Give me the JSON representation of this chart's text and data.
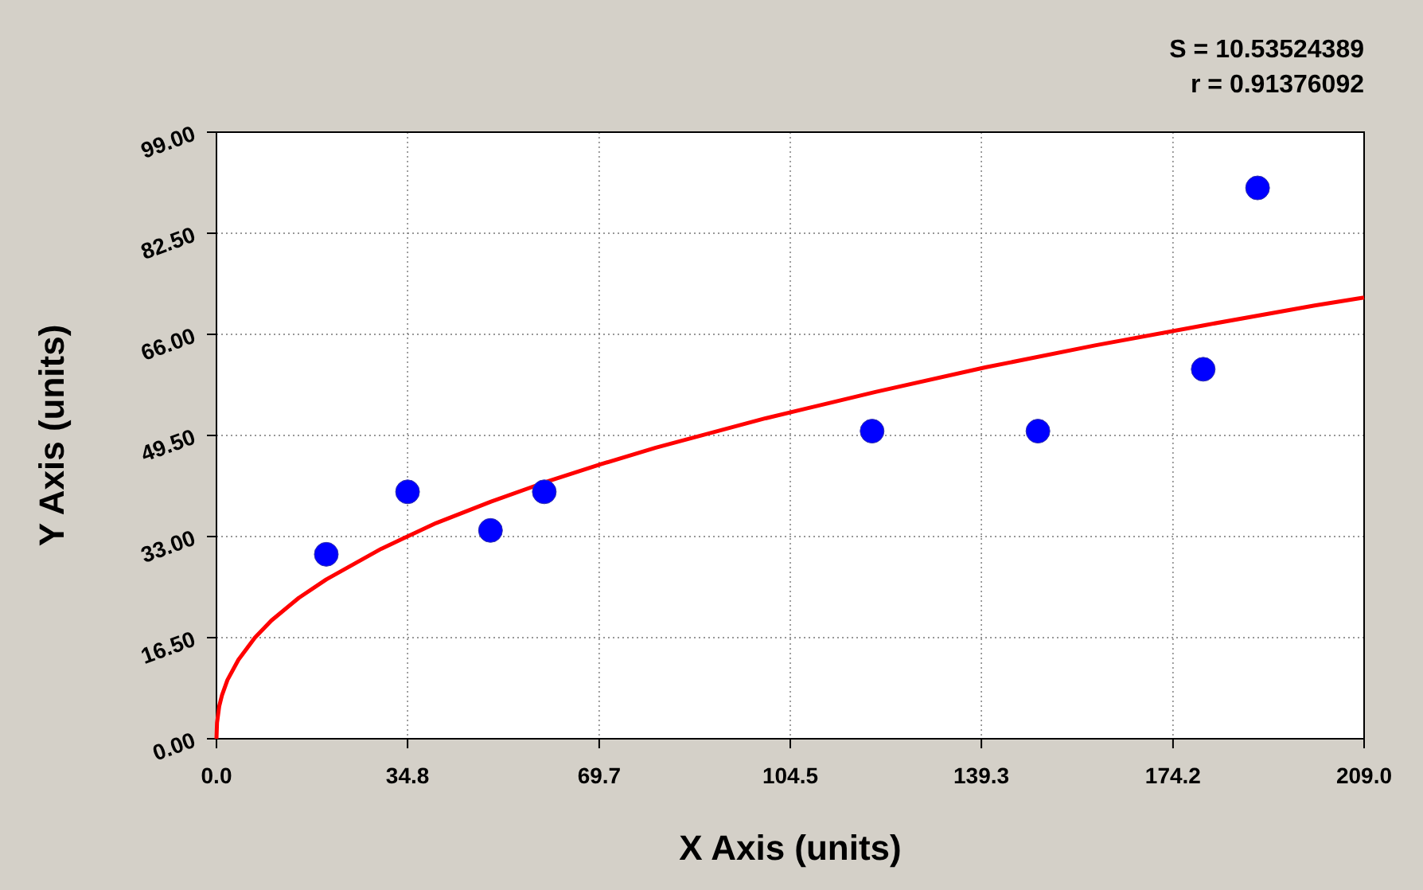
{
  "chart_data": {
    "type": "scatter",
    "xlabel": "X Axis (units)",
    "ylabel": "Y Axis (units)",
    "annotations": [
      "S = 10.53524389",
      "r = 0.91376092"
    ],
    "xlim": [
      0,
      209
    ],
    "ylim": [
      0,
      99
    ],
    "xticks": [
      {
        "value": 0,
        "label": "0.0"
      },
      {
        "value": 34.8,
        "label": "34.8"
      },
      {
        "value": 69.7,
        "label": "69.7"
      },
      {
        "value": 104.5,
        "label": "104.5"
      },
      {
        "value": 139.3,
        "label": "139.3"
      },
      {
        "value": 174.2,
        "label": "174.2"
      },
      {
        "value": 209,
        "label": "209.0"
      }
    ],
    "yticks": [
      {
        "value": 0,
        "label": "0.00"
      },
      {
        "value": 16.5,
        "label": "16.50"
      },
      {
        "value": 33,
        "label": "33.00"
      },
      {
        "value": 49.5,
        "label": "49.50"
      },
      {
        "value": 66,
        "label": "66.00"
      },
      {
        "value": 82.5,
        "label": "82.50"
      },
      {
        "value": 99,
        "label": "99.00"
      }
    ],
    "grid": true,
    "marker": "circle",
    "series": [
      {
        "type": "line",
        "color": "#ff0000",
        "line_style": "solid",
        "marker": "none",
        "x": [
          0,
          0.1,
          0.5,
          1,
          2,
          4,
          7,
          10,
          15,
          20,
          30,
          40,
          50,
          60,
          70,
          80,
          100,
          120,
          140,
          160,
          180,
          200,
          209
        ],
        "values": [
          0,
          2.6,
          5.3,
          7.1,
          9.6,
          12.9,
          16.5,
          19.3,
          23.0,
          26.0,
          31.0,
          35.2,
          38.7,
          41.9,
          44.8,
          47.5,
          52.3,
          56.6,
          60.6,
          64.2,
          67.5,
          70.7,
          72.0
        ]
      },
      {
        "color": "#0000ff",
        "x": [
          20.0,
          34.8,
          49.9,
          59.7,
          119.4,
          149.6,
          179.7,
          189.6
        ],
        "values": [
          30.1,
          40.3,
          34.0,
          40.3,
          50.2,
          50.2,
          60.3,
          89.9
        ]
      }
    ]
  }
}
